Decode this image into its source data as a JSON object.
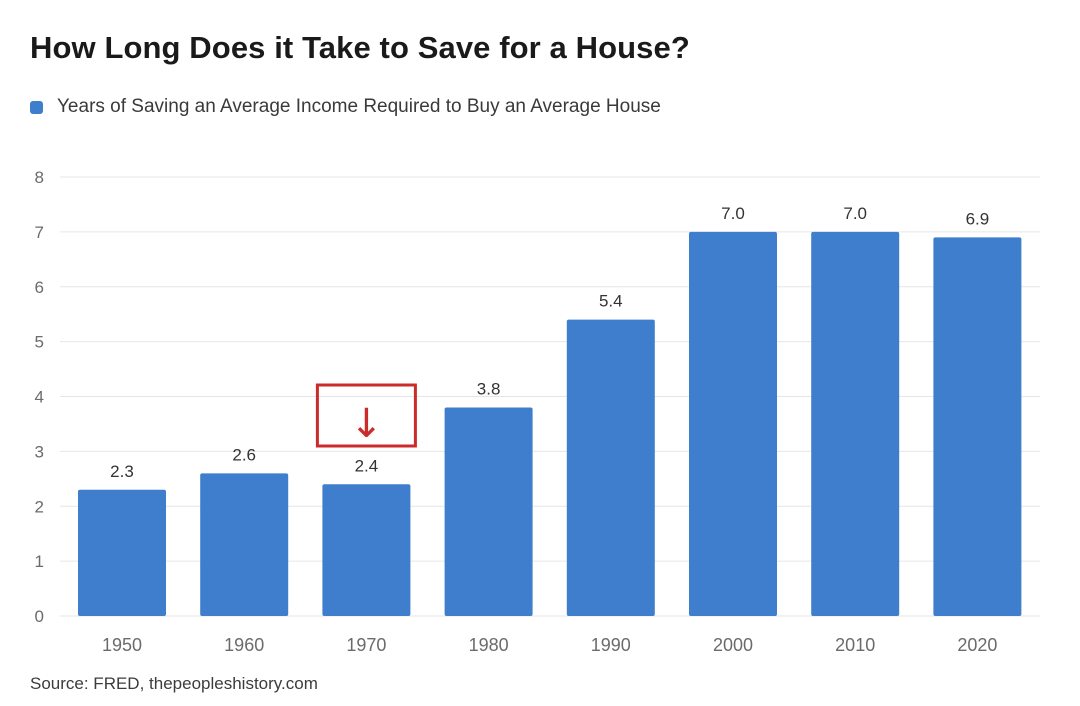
{
  "colors": {
    "bar": "#3e7ecc",
    "grid": "#e6e6e6",
    "annotation": "#cc2b2b"
  },
  "chart_data": {
    "type": "bar",
    "title": "How Long Does it Take to Save for a House?",
    "legend_position": "top-left",
    "grid": true,
    "ylim": [
      0,
      8
    ],
    "yticks": [
      "0",
      "1",
      "2",
      "3",
      "4",
      "5",
      "6",
      "7",
      "8"
    ],
    "categories": [
      "1950",
      "1960",
      "1970",
      "1980",
      "1990",
      "2000",
      "2010",
      "2020"
    ],
    "series": [
      {
        "name": "Years of Saving an Average Income Required to Buy an Average House",
        "values": [
          2.3,
          2.6,
          2.4,
          3.8,
          5.4,
          7.0,
          7.0,
          6.9
        ]
      }
    ],
    "data_labels": [
      "2.3",
      "2.6",
      "2.4",
      "3.8",
      "5.4",
      "7.0",
      "7.0",
      "6.9"
    ],
    "annotation": {
      "category": "1970",
      "symbol": "↓"
    }
  },
  "source": "Source: FRED, thepeopleshistory.com"
}
